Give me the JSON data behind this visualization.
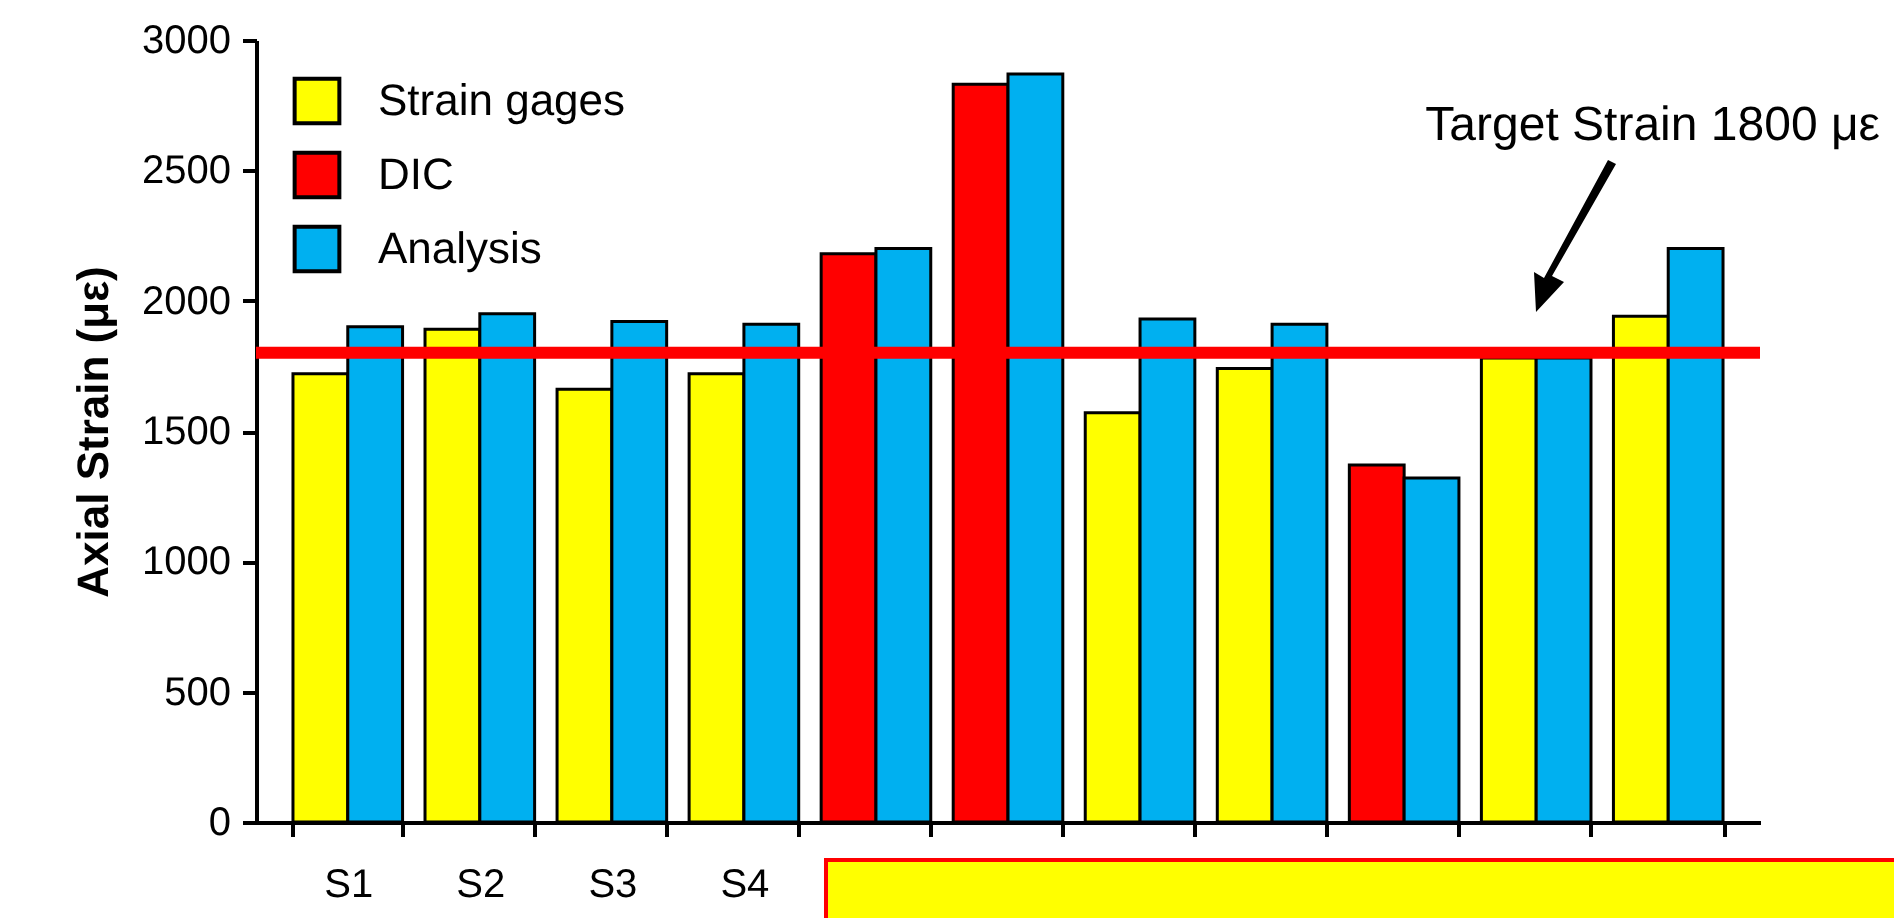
{
  "chart_data": {
    "type": "bar",
    "ylabel": "Axial Strain (με)",
    "categories": [
      "S1",
      "S2",
      "S3",
      "S4",
      null,
      null,
      null,
      null,
      null,
      null,
      null
    ],
    "series": [
      {
        "name": "Strain gages",
        "color": "#ffff00",
        "values": [
          1720,
          1890,
          1660,
          1720,
          null,
          null,
          1570,
          1740,
          null,
          1780,
          1940
        ]
      },
      {
        "name": "DIC",
        "color": "#ff0000",
        "values": [
          null,
          null,
          null,
          null,
          2180,
          2830,
          null,
          null,
          1370,
          null,
          null
        ]
      },
      {
        "name": "Analysis",
        "color": "#00b0f0",
        "values": [
          1900,
          1950,
          1920,
          1910,
          2200,
          2870,
          1930,
          1910,
          1320,
          1780,
          2200
        ]
      }
    ],
    "ylim": [
      0,
      3000
    ],
    "yticks": [
      0,
      500,
      1000,
      1500,
      2000,
      2500,
      3000
    ],
    "ref_lines": [
      {
        "axis": "y",
        "value": 1800,
        "color": "#ff0000"
      }
    ],
    "annotations": [
      "Target Strain 1800 με"
    ],
    "grid": false,
    "legend": "top left"
  }
}
